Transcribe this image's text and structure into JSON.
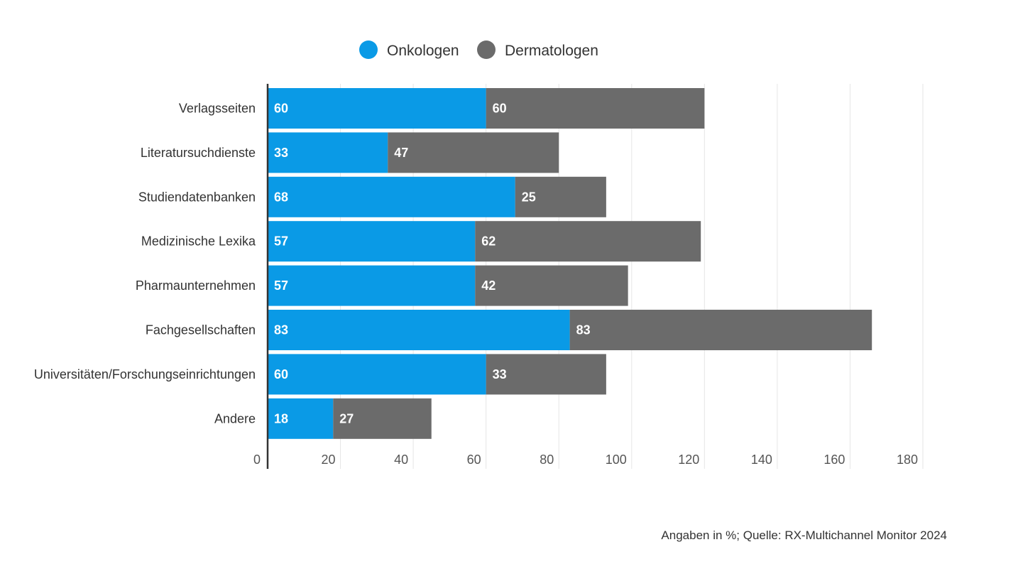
{
  "chart_data": {
    "type": "bar",
    "orientation": "horizontal",
    "stacked": true,
    "categories": [
      "Verlagsseiten",
      "Literatursuchdienste",
      "Studiendatenbanken",
      "Medizinische Lexika",
      "Pharmaunternehmen",
      "Fachgesellschaften",
      "Universitäten/Forschungseinrichtungen",
      "Andere"
    ],
    "series": [
      {
        "name": "Onkologen",
        "color": "#0a9ae6",
        "values": [
          60,
          33,
          68,
          57,
          57,
          83,
          60,
          18
        ]
      },
      {
        "name": "Dermatologen",
        "color": "#6b6b6b",
        "values": [
          60,
          47,
          25,
          62,
          42,
          83,
          33,
          27
        ]
      }
    ],
    "xlim": [
      0,
      180
    ],
    "xticks": [
      0,
      20,
      40,
      60,
      80,
      100,
      120,
      140,
      160,
      180
    ],
    "grid": true,
    "legend_position": "top",
    "title": "",
    "xlabel": "",
    "ylabel": ""
  },
  "footer": {
    "source": "Angaben in %; Quelle: RX-Multichannel Monitor 2024"
  }
}
